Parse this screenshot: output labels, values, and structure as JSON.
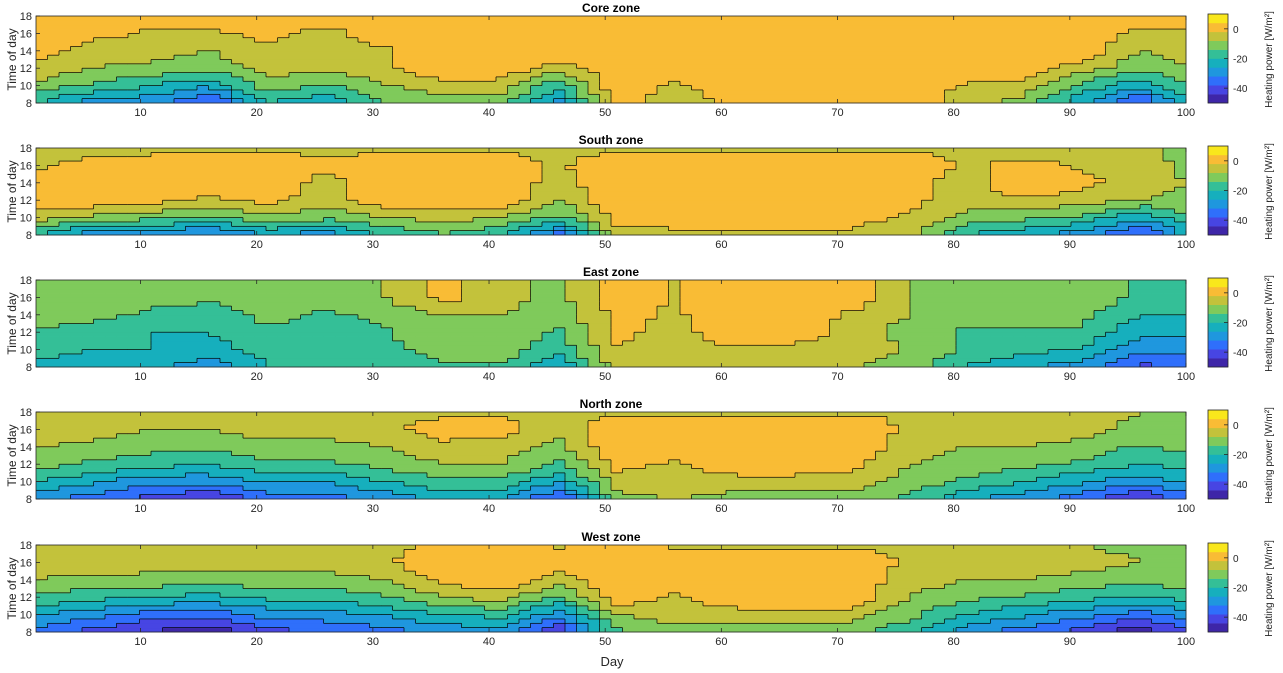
{
  "figure": {
    "xlabel": "Day",
    "ylabel": "Time of day",
    "colorbar_label": "Heating power [W/m²]"
  },
  "colormap": [
    "#3e26a8",
    "#4745e3",
    "#2f6ffb",
    "#1f97de",
    "#16afbd",
    "#34bf97",
    "#7fca5b",
    "#c3c23b",
    "#f9bc35",
    "#f9e71c"
  ],
  "contour_line_color": "#000000",
  "chart_data": [
    {
      "type": "heatmap",
      "subtype": "filled-contour",
      "title": "Core zone",
      "xlabel": "",
      "ylabel": "Time of day",
      "xlim": [
        1,
        100
      ],
      "ylim": [
        8,
        18
      ],
      "xticks": [
        "10",
        "20",
        "30",
        "40",
        "50",
        "60",
        "70",
        "80",
        "90",
        "100"
      ],
      "yticks": [
        "8",
        "10",
        "12",
        "14",
        "16",
        "18"
      ],
      "colorbar": {
        "label": "Heating power [W/m²]",
        "ticks": [
          "0",
          "-20",
          "-40"
        ],
        "range": [
          -50,
          10
        ]
      },
      "hours": [
        8,
        10,
        12,
        14,
        16,
        18
      ],
      "days": [
        1,
        6,
        11,
        16,
        21,
        26,
        31,
        36,
        41,
        46,
        51,
        56,
        61,
        66,
        71,
        76,
        81,
        86,
        91,
        96,
        100
      ],
      "values": [
        [
          -20,
          -30,
          -30,
          -40,
          -20,
          -25,
          -15,
          -10,
          -12,
          -30,
          3,
          -8,
          0,
          3,
          3,
          3,
          -5,
          -10,
          -25,
          -40,
          -20
        ],
        [
          -10,
          -15,
          -20,
          -25,
          -10,
          -15,
          -8,
          -5,
          -5,
          -18,
          3,
          -3,
          3,
          3,
          3,
          3,
          -3,
          -5,
          -15,
          -25,
          -15
        ],
        [
          -3,
          -8,
          -10,
          -12,
          -5,
          -6,
          -3,
          3,
          3,
          -5,
          3,
          3,
          3,
          3,
          3,
          3,
          3,
          3,
          -5,
          -12,
          -8
        ],
        [
          0,
          -5,
          -5,
          -8,
          -3,
          -5,
          -3,
          3,
          3,
          3,
          3,
          3,
          3,
          3,
          3,
          3,
          3,
          3,
          3,
          -8,
          -5
        ],
        [
          3,
          0,
          -3,
          -3,
          0,
          -5,
          3,
          3,
          3,
          3,
          3,
          3,
          3,
          3,
          3,
          3,
          0,
          3,
          0,
          -3,
          -3
        ],
        [
          3,
          3,
          0,
          0,
          3,
          3,
          3,
          3,
          3,
          3,
          3,
          3,
          3,
          3,
          3,
          3,
          3,
          3,
          3,
          0,
          0
        ]
      ]
    },
    {
      "type": "heatmap",
      "subtype": "filled-contour",
      "title": "South zone",
      "xlabel": "",
      "ylabel": "Time of day",
      "xlim": [
        1,
        100
      ],
      "ylim": [
        8,
        18
      ],
      "xticks": [
        "10",
        "20",
        "30",
        "40",
        "50",
        "60",
        "70",
        "80",
        "90",
        "100"
      ],
      "yticks": [
        "8",
        "10",
        "12",
        "14",
        "16",
        "18"
      ],
      "colorbar": {
        "label": "Heating power [W/m²]",
        "ticks": [
          "0",
          "-20",
          "-40"
        ],
        "range": [
          -50,
          10
        ]
      },
      "hours": [
        8,
        10,
        12,
        14,
        16,
        18
      ],
      "days": [
        1,
        6,
        11,
        16,
        21,
        26,
        31,
        36,
        41,
        46,
        51,
        56,
        61,
        66,
        71,
        76,
        81,
        86,
        91,
        96,
        100
      ],
      "values": [
        [
          -20,
          -30,
          -30,
          -35,
          -25,
          -30,
          -20,
          -15,
          -20,
          -35,
          -5,
          -3,
          -3,
          -3,
          -3,
          -5,
          -20,
          -25,
          -30,
          -40,
          -25
        ],
        [
          -5,
          -10,
          -12,
          -15,
          -10,
          -12,
          -8,
          -5,
          -8,
          -15,
          0,
          0,
          0,
          0,
          0,
          -3,
          -10,
          -12,
          -15,
          -25,
          -15
        ],
        [
          0,
          3,
          0,
          -3,
          0,
          -5,
          3,
          3,
          3,
          -8,
          3,
          3,
          3,
          3,
          3,
          0,
          -5,
          -3,
          -5,
          -8,
          -10
        ],
        [
          0,
          3,
          3,
          0,
          3,
          -5,
          3,
          3,
          3,
          -5,
          3,
          3,
          3,
          3,
          3,
          0,
          -5,
          3,
          0,
          -5,
          -8
        ],
        [
          -3,
          0,
          3,
          3,
          3,
          0,
          3,
          3,
          3,
          -3,
          3,
          3,
          3,
          3,
          3,
          3,
          -3,
          0,
          -3,
          -3,
          -10
        ],
        [
          -3,
          -5,
          -5,
          -5,
          -3,
          -5,
          -3,
          -3,
          -3,
          -5,
          -3,
          -3,
          -3,
          -3,
          -3,
          -3,
          -5,
          -5,
          -5,
          -5,
          -12
        ]
      ]
    },
    {
      "type": "heatmap",
      "subtype": "filled-contour",
      "title": "East zone",
      "xlabel": "",
      "ylabel": "Time of day",
      "xlim": [
        1,
        100
      ],
      "ylim": [
        8,
        18
      ],
      "xticks": [
        "10",
        "20",
        "30",
        "40",
        "50",
        "60",
        "70",
        "80",
        "90",
        "100"
      ],
      "yticks": [
        "8",
        "10",
        "12",
        "14",
        "16",
        "18"
      ],
      "colorbar": {
        "label": "Heating power [W/m²]",
        "ticks": [
          "0",
          "-20",
          "-40"
        ],
        "range": [
          -50,
          10
        ]
      },
      "hours": [
        8,
        10,
        12,
        14,
        16,
        18
      ],
      "days": [
        1,
        6,
        11,
        16,
        21,
        26,
        31,
        36,
        41,
        46,
        51,
        56,
        61,
        66,
        71,
        76,
        81,
        86,
        91,
        96,
        100
      ],
      "values": [
        [
          -25,
          -25,
          -25,
          -30,
          -20,
          -20,
          -20,
          -15,
          -15,
          -25,
          -5,
          -5,
          -8,
          -8,
          -8,
          -10,
          -20,
          -25,
          -30,
          -40,
          -35
        ],
        [
          -15,
          -20,
          -20,
          -22,
          -18,
          -20,
          -15,
          -12,
          -10,
          -18,
          -3,
          -5,
          -3,
          -5,
          -5,
          -8,
          -15,
          -18,
          -20,
          -30,
          -30
        ],
        [
          -15,
          -18,
          -20,
          -20,
          -15,
          -18,
          -15,
          -10,
          -10,
          -15,
          0,
          -5,
          3,
          3,
          -5,
          -10,
          -15,
          -15,
          -15,
          -25,
          -25
        ],
        [
          -10,
          -12,
          -15,
          -18,
          -12,
          -15,
          -12,
          -8,
          -8,
          -12,
          0,
          -3,
          3,
          3,
          -3,
          -8,
          -12,
          -12,
          -12,
          -20,
          -20
        ],
        [
          -8,
          -10,
          -12,
          -12,
          -10,
          -12,
          -8,
          0,
          -5,
          -10,
          3,
          -3,
          3,
          3,
          3,
          -8,
          -10,
          -10,
          -10,
          -15,
          -15
        ],
        [
          -10,
          -10,
          -12,
          -12,
          -10,
          -12,
          -8,
          0,
          -5,
          -10,
          3,
          -3,
          3,
          3,
          3,
          -8,
          -10,
          -10,
          -10,
          -15,
          -15
        ]
      ]
    },
    {
      "type": "heatmap",
      "subtype": "filled-contour",
      "title": "North zone",
      "xlabel": "",
      "ylabel": "Time of day",
      "xlim": [
        1,
        100
      ],
      "ylim": [
        8,
        18
      ],
      "xticks": [
        "10",
        "20",
        "30",
        "40",
        "50",
        "60",
        "70",
        "80",
        "90",
        "100"
      ],
      "yticks": [
        "8",
        "10",
        "12",
        "14",
        "16",
        "18"
      ],
      "colorbar": {
        "label": "Heating power [W/m²]",
        "ticks": [
          "0",
          "-20",
          "-40"
        ],
        "range": [
          -50,
          10
        ]
      },
      "hours": [
        8,
        10,
        12,
        14,
        16,
        18
      ],
      "days": [
        1,
        6,
        11,
        16,
        21,
        26,
        31,
        36,
        41,
        46,
        51,
        56,
        61,
        66,
        71,
        76,
        81,
        86,
        91,
        96,
        100
      ],
      "values": [
        [
          -30,
          -35,
          -40,
          -45,
          -35,
          -35,
          -30,
          -25,
          -25,
          -40,
          -10,
          -8,
          -10,
          -10,
          -10,
          -15,
          -25,
          -30,
          -35,
          -45,
          -35
        ],
        [
          -20,
          -25,
          -30,
          -30,
          -25,
          -25,
          -20,
          -15,
          -15,
          -25,
          -5,
          -5,
          -5,
          -5,
          -5,
          -10,
          -15,
          -20,
          -25,
          -30,
          -25
        ],
        [
          -12,
          -15,
          -18,
          -20,
          -15,
          -15,
          -12,
          -8,
          -8,
          -15,
          0,
          -3,
          3,
          3,
          0,
          -8,
          -10,
          -12,
          -15,
          -20,
          -18
        ],
        [
          -8,
          -10,
          -12,
          -12,
          -10,
          -10,
          -8,
          -3,
          -5,
          -10,
          3,
          0,
          3,
          3,
          3,
          -5,
          -8,
          -8,
          -10,
          -15,
          -12
        ],
        [
          -3,
          -5,
          -8,
          -8,
          -5,
          -5,
          -3,
          0,
          0,
          -5,
          3,
          3,
          3,
          3,
          3,
          -3,
          -5,
          -5,
          -5,
          -10,
          -8
        ],
        [
          -3,
          -5,
          -5,
          -5,
          -5,
          -5,
          -3,
          -3,
          -3,
          -5,
          -3,
          -3,
          -3,
          -3,
          -3,
          -3,
          -5,
          -5,
          -5,
          -8,
          -8
        ]
      ]
    },
    {
      "type": "heatmap",
      "subtype": "filled-contour",
      "title": "West zone",
      "xlabel": "Day",
      "ylabel": "Time of day",
      "xlim": [
        1,
        100
      ],
      "ylim": [
        8,
        18
      ],
      "xticks": [
        "10",
        "20",
        "30",
        "40",
        "50",
        "60",
        "70",
        "80",
        "90",
        "100"
      ],
      "yticks": [
        "8",
        "10",
        "12",
        "14",
        "16",
        "18"
      ],
      "colorbar": {
        "label": "Heating power [W/m²]",
        "ticks": [
          "0",
          "-20",
          "-40"
        ],
        "range": [
          -50,
          10
        ]
      },
      "hours": [
        8,
        10,
        12,
        14,
        16,
        18
      ],
      "days": [
        1,
        6,
        11,
        16,
        21,
        26,
        31,
        36,
        41,
        46,
        51,
        56,
        61,
        66,
        71,
        76,
        81,
        86,
        91,
        96,
        100
      ],
      "values": [
        [
          -35,
          -40,
          -45,
          -48,
          -40,
          -38,
          -35,
          -30,
          -30,
          -45,
          -15,
          -10,
          -12,
          -12,
          -12,
          -18,
          -30,
          -35,
          -40,
          -48,
          -40
        ],
        [
          -25,
          -30,
          -35,
          -35,
          -30,
          -28,
          -25,
          -20,
          -18,
          -30,
          -8,
          -5,
          -5,
          -5,
          -5,
          -12,
          -20,
          -25,
          -30,
          -35,
          -30
        ],
        [
          -15,
          -18,
          -20,
          -22,
          -18,
          -18,
          -15,
          -8,
          -5,
          -15,
          3,
          -3,
          3,
          3,
          3,
          -8,
          -12,
          -15,
          -18,
          -20,
          -18
        ],
        [
          -8,
          -10,
          -10,
          -12,
          -10,
          -10,
          -8,
          0,
          3,
          -5,
          3,
          3,
          3,
          3,
          3,
          -5,
          -8,
          -8,
          -10,
          -12,
          -10
        ],
        [
          -5,
          -3,
          -5,
          -5,
          -5,
          -5,
          -3,
          3,
          3,
          0,
          3,
          3,
          3,
          3,
          3,
          -3,
          -5,
          -5,
          -5,
          -8,
          -8
        ],
        [
          -8,
          -8,
          -8,
          -8,
          -8,
          -8,
          -5,
          0,
          3,
          -3,
          3,
          -3,
          -3,
          -3,
          -3,
          -5,
          -8,
          -8,
          -8,
          -10,
          -10
        ]
      ]
    }
  ]
}
